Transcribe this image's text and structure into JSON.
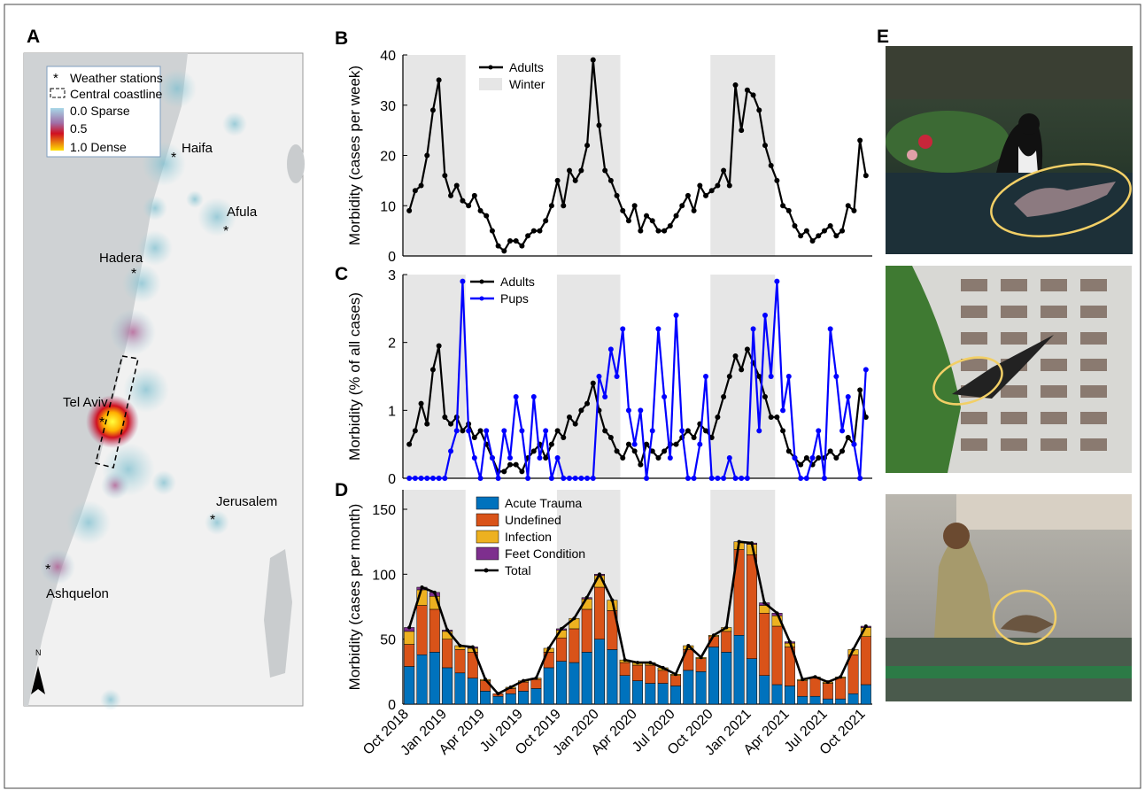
{
  "panel_labels": [
    "A",
    "B",
    "C",
    "D",
    "E"
  ],
  "map": {
    "legend": [
      "Weather stations",
      "Central coastline",
      "0.0 Sparse",
      "0.5",
      "1.0 Dense"
    ],
    "cities": [
      "Haifa",
      "Afula",
      "Hadera",
      "Tel Aviv",
      "Jerusalem",
      "Ashquelon"
    ],
    "north": "N"
  },
  "chart_data": [
    {
      "type": "line",
      "ylabel": "Morbidity (cases per week)",
      "ylim": [
        0,
        40
      ],
      "yticks": [
        0,
        10,
        20,
        30,
        40
      ],
      "shade_label": "Winter",
      "shade_color": "#e6e6e6",
      "shaded_spans": [
        [
          0,
          5
        ],
        [
          12.2,
          17.2
        ],
        [
          24.3,
          29.4
        ]
      ],
      "series": [
        {
          "name": "Adults",
          "color": "#000000",
          "values": [
            9,
            13,
            14,
            20,
            29,
            35,
            16,
            12,
            14,
            11,
            10,
            12,
            9,
            8,
            5,
            2,
            1,
            3,
            3,
            2,
            4,
            5,
            5,
            7,
            10,
            15,
            10,
            17,
            15,
            17,
            22,
            39,
            26,
            17,
            15,
            12,
            9,
            7,
            10,
            5,
            8,
            7,
            5,
            5,
            6,
            8,
            10,
            12,
            9,
            14,
            12,
            13,
            14,
            17,
            14,
            34,
            25,
            33,
            32,
            29,
            22,
            18,
            15,
            10,
            9,
            6,
            4,
            5,
            3,
            4,
            5,
            6,
            4,
            5,
            10,
            9,
            23,
            16
          ]
        }
      ]
    },
    {
      "type": "line",
      "ylabel": "Morbidity (% of all cases)",
      "ylim": [
        0,
        3
      ],
      "yticks": [
        0,
        1,
        2,
        3
      ],
      "shade_color": "#e6e6e6",
      "shaded_spans": [
        [
          0,
          5
        ],
        [
          12.2,
          17.2
        ],
        [
          24.3,
          29.4
        ]
      ],
      "series": [
        {
          "name": "Adults",
          "color": "#000000",
          "values": [
            0.5,
            0.7,
            1.1,
            0.8,
            1.6,
            1.95,
            0.9,
            0.8,
            0.9,
            0.7,
            0.8,
            0.6,
            0.7,
            0.5,
            0.3,
            0.1,
            0.1,
            0.2,
            0.2,
            0.1,
            0.3,
            0.4,
            0.5,
            0.3,
            0.5,
            0.7,
            0.6,
            0.9,
            0.8,
            1.0,
            1.1,
            1.4,
            1.0,
            0.7,
            0.6,
            0.4,
            0.3,
            0.5,
            0.4,
            0.2,
            0.5,
            0.4,
            0.3,
            0.4,
            0.5,
            0.5,
            0.6,
            0.7,
            0.6,
            0.8,
            0.7,
            0.6,
            0.9,
            1.2,
            1.5,
            1.8,
            1.6,
            1.9,
            1.7,
            1.5,
            1.2,
            0.9,
            0.9,
            0.7,
            0.4,
            0.3,
            0.2,
            0.3,
            0.2,
            0.3,
            0.3,
            0.4,
            0.3,
            0.4,
            0.6,
            0.5,
            1.3,
            0.9
          ]
        },
        {
          "name": "Pups",
          "color": "#0000ff",
          "values": [
            0,
            0,
            0,
            0,
            0,
            0,
            0,
            0.4,
            0.7,
            2.9,
            0.7,
            0.3,
            0,
            0.7,
            0.3,
            0,
            0.7,
            0.3,
            1.2,
            0.7,
            0,
            1.2,
            0.3,
            0.7,
            0,
            0.3,
            0,
            0,
            0,
            0,
            0,
            0,
            1.5,
            1.2,
            1.9,
            1.5,
            2.2,
            1.0,
            0.5,
            1.0,
            0,
            0.7,
            2.2,
            1.2,
            0.3,
            2.4,
            0.7,
            0,
            0,
            0.5,
            1.5,
            0,
            0,
            0,
            0.3,
            0,
            0,
            0,
            2.2,
            0.7,
            2.4,
            1.5,
            2.9,
            1.0,
            1.5,
            0.3,
            0,
            0,
            0.3,
            0.7,
            0,
            2.2,
            1.5,
            0.7,
            1.2,
            0.5,
            0,
            1.6
          ]
        }
      ]
    },
    {
      "type": "bar",
      "ylabel": "Morbidity (cases per month)",
      "ylim": [
        0,
        165
      ],
      "yticks": [
        0,
        50,
        100,
        150
      ],
      "shade_color": "#e6e6e6",
      "shaded_spans": [
        [
          0,
          5
        ],
        [
          12.2,
          17.2
        ],
        [
          24.3,
          29.4
        ]
      ],
      "categories": [
        "Oct 2018",
        null,
        null,
        "Jan 2019",
        null,
        null,
        "Apr 2019",
        null,
        null,
        "Jul 2019",
        null,
        null,
        "Oct 2019",
        null,
        null,
        "Jan 2020",
        null,
        null,
        "Apr 2020",
        null,
        null,
        "Jul 2020",
        null,
        null,
        "Oct 2020",
        null,
        null,
        "Jan 2021",
        null,
        null,
        "Apr 2021",
        null,
        null,
        "Jul 2021",
        null,
        null,
        "Oct 2021"
      ],
      "series": [
        {
          "name": "Acute Trauma",
          "color": "#0072bd",
          "values": [
            29,
            38,
            40,
            28,
            24,
            20,
            10,
            6,
            8,
            10,
            12,
            28,
            33,
            32,
            40,
            50,
            42,
            22,
            18,
            16,
            16,
            14,
            26,
            25,
            44,
            40,
            53,
            35,
            22,
            15,
            14,
            6,
            6,
            4,
            4,
            8,
            15
          ]
        },
        {
          "name": "Undefined",
          "color": "#d95319",
          "values": [
            17,
            38,
            33,
            22,
            18,
            20,
            8,
            2,
            4,
            7,
            7,
            12,
            18,
            26,
            33,
            40,
            30,
            10,
            12,
            14,
            10,
            8,
            16,
            10,
            8,
            16,
            66,
            80,
            48,
            45,
            30,
            12,
            14,
            12,
            16,
            30,
            37
          ]
        },
        {
          "name": "Infection",
          "color": "#edb120",
          "values": [
            10,
            12,
            10,
            6,
            3,
            3,
            1,
            0,
            1,
            1,
            1,
            3,
            6,
            8,
            8,
            9,
            8,
            2,
            2,
            2,
            2,
            1,
            3,
            1,
            1,
            3,
            6,
            8,
            6,
            8,
            3,
            1,
            1,
            1,
            1,
            4,
            7
          ]
        },
        {
          "name": "Feet Condition",
          "color": "#7e2f8e",
          "values": [
            3,
            2,
            3,
            1,
            0,
            1,
            0,
            0,
            0,
            0,
            0,
            0,
            1,
            0,
            1,
            1,
            0,
            0,
            0,
            0,
            0,
            0,
            0,
            0,
            0,
            0,
            0,
            1,
            2,
            2,
            1,
            0,
            0,
            0,
            0,
            0,
            1
          ]
        },
        {
          "name": "Total",
          "color": "#000000",
          "kind": "line",
          "values": [
            59,
            90,
            86,
            57,
            45,
            44,
            19,
            8,
            13,
            18,
            20,
            43,
            58,
            66,
            82,
            100,
            80,
            34,
            32,
            32,
            28,
            23,
            45,
            36,
            53,
            59,
            125,
            124,
            78,
            70,
            48,
            19,
            21,
            17,
            21,
            42,
            60
          ]
        }
      ]
    }
  ]
}
